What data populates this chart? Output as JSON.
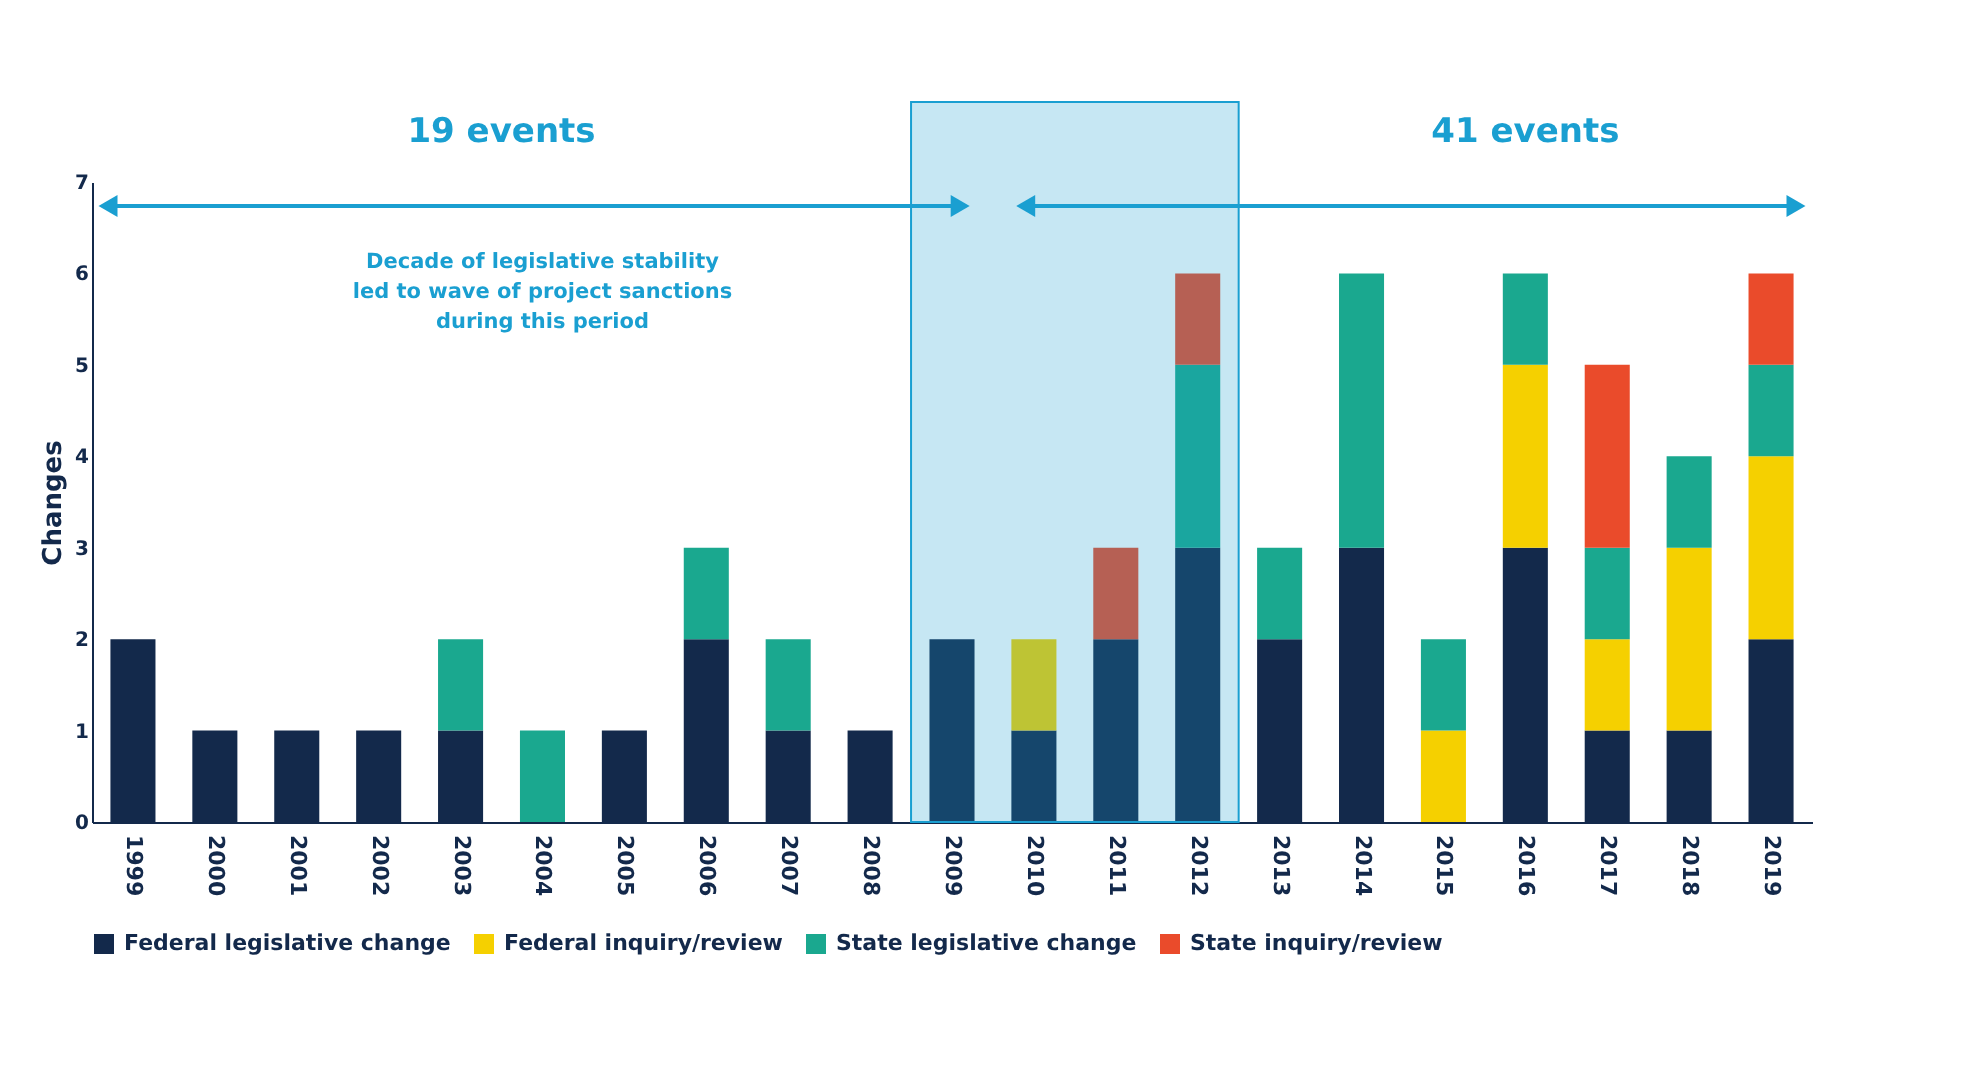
{
  "chart_data": {
    "type": "bar",
    "stacked": true,
    "ylabel": "Changes",
    "categories": [
      "1999",
      "2000",
      "2001",
      "2002",
      "2003",
      "2004",
      "2005",
      "2006",
      "2007",
      "2008",
      "2009",
      "2010",
      "2011",
      "2012",
      "2013",
      "2014",
      "2015",
      "2016",
      "2017",
      "2018",
      "2019"
    ],
    "series": [
      {
        "name": "Federal legislative change",
        "color": "#13294b",
        "values": [
          2,
          1,
          1,
          1,
          1,
          0,
          1,
          2,
          1,
          1,
          2,
          1,
          2,
          3,
          2,
          3,
          0,
          3,
          1,
          1,
          2
        ]
      },
      {
        "name": "Federal inquiry/review",
        "color": "#f5d000",
        "values": [
          0,
          0,
          0,
          0,
          0,
          0,
          0,
          0,
          0,
          0,
          0,
          1,
          0,
          0,
          0,
          0,
          1,
          2,
          1,
          2,
          2
        ]
      },
      {
        "name": "State legislative change",
        "color": "#1aa88f",
        "values": [
          0,
          0,
          0,
          0,
          1,
          1,
          0,
          1,
          1,
          0,
          0,
          0,
          0,
          2,
          1,
          3,
          1,
          1,
          1,
          1,
          1
        ]
      },
      {
        "name": "State inquiry/review",
        "color": "#ea4b2b",
        "values": [
          0,
          0,
          0,
          0,
          0,
          0,
          0,
          0,
          0,
          0,
          0,
          0,
          1,
          1,
          0,
          0,
          0,
          0,
          2,
          0,
          1
        ]
      }
    ],
    "ylim": [
      0,
      7
    ],
    "yticks": [
      0,
      1,
      2,
      3,
      4,
      5,
      6,
      7
    ],
    "grid": false,
    "legend": "bottom",
    "bands": [
      {
        "axis": "x",
        "from": "2009",
        "to": "2012",
        "label": null,
        "color": "#1a9fd1"
      }
    ],
    "annotations": [
      "19 events",
      "41 events",
      "Decade of legislative stability led to wave of project sanctions during this period"
    ]
  }
}
